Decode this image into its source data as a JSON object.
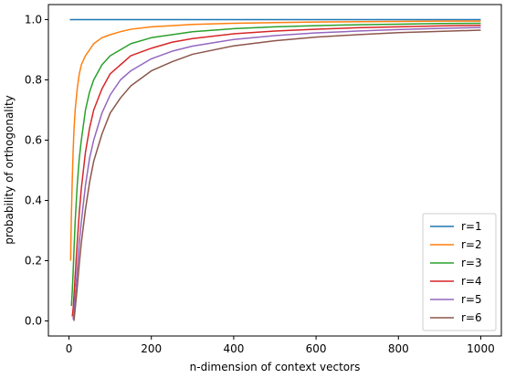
{
  "chart_data": {
    "type": "line",
    "title": "",
    "xlabel": "n-dimension of context vectors",
    "ylabel": "probability of orthogonality",
    "xlim": [
      -50,
      1050
    ],
    "ylim": [
      -0.05,
      1.05
    ],
    "xticks": [
      0,
      200,
      400,
      600,
      800,
      1000
    ],
    "yticks": [
      0.0,
      0.2,
      0.4,
      0.6,
      0.8,
      1.0
    ],
    "xtick_labels": [
      "0",
      "200",
      "400",
      "600",
      "800",
      "1000"
    ],
    "ytick_labels": [
      "0.0",
      "0.2",
      "0.4",
      "0.6",
      "0.8",
      "1.0"
    ],
    "grid": false,
    "legend_position": "lower-right",
    "x": [
      2,
      3,
      4,
      5,
      6,
      8,
      10,
      12,
      15,
      20,
      25,
      30,
      40,
      50,
      60,
      80,
      100,
      125,
      150,
      200,
      250,
      300,
      400,
      500,
      600,
      700,
      800,
      900,
      1000
    ],
    "series": [
      {
        "name": "r=1",
        "color": "#1f77b4",
        "values": [
          1.0,
          1.0,
          1.0,
          1.0,
          1.0,
          1.0,
          1.0,
          1.0,
          1.0,
          1.0,
          1.0,
          1.0,
          1.0,
          1.0,
          1.0,
          1.0,
          1.0,
          1.0,
          1.0,
          1.0,
          1.0,
          1.0,
          1.0,
          1.0,
          1.0,
          1.0,
          1.0,
          1.0,
          1.0
        ]
      },
      {
        "name": "r=2",
        "color": "#ff7f0e",
        "values": [
          null,
          null,
          0.2,
          0.29,
          0.36,
          0.47,
          0.56,
          0.63,
          0.7,
          0.77,
          0.82,
          0.85,
          0.88,
          0.9,
          0.92,
          0.94,
          0.95,
          0.96,
          0.968,
          0.976,
          0.98,
          0.984,
          0.988,
          0.99,
          0.992,
          0.993,
          0.994,
          0.995,
          0.995
        ]
      },
      {
        "name": "r=3",
        "color": "#2ca02c",
        "values": [
          null,
          null,
          null,
          null,
          0.05,
          0.1,
          0.16,
          0.23,
          0.33,
          0.45,
          0.54,
          0.6,
          0.7,
          0.76,
          0.8,
          0.85,
          0.88,
          0.9,
          0.92,
          0.94,
          0.95,
          0.96,
          0.97,
          0.976,
          0.98,
          0.983,
          0.985,
          0.987,
          0.988
        ]
      },
      {
        "name": "r=4",
        "color": "#d62728",
        "values": [
          null,
          null,
          null,
          null,
          null,
          0.015,
          0.04,
          0.08,
          0.15,
          0.26,
          0.36,
          0.44,
          0.56,
          0.64,
          0.7,
          0.77,
          0.82,
          0.85,
          0.88,
          0.905,
          0.925,
          0.937,
          0.953,
          0.962,
          0.968,
          0.973,
          0.976,
          0.979,
          0.981
        ]
      },
      {
        "name": "r=5",
        "color": "#9467bd",
        "values": [
          null,
          null,
          null,
          null,
          null,
          null,
          0.005,
          0.03,
          0.08,
          0.17,
          0.26,
          0.33,
          0.45,
          0.54,
          0.6,
          0.69,
          0.75,
          0.8,
          0.83,
          0.87,
          0.895,
          0.912,
          0.934,
          0.947,
          0.956,
          0.962,
          0.967,
          0.971,
          0.974
        ]
      },
      {
        "name": "r=6",
        "color": "#8c564b",
        "values": [
          null,
          null,
          null,
          null,
          null,
          null,
          null,
          0.0,
          0.04,
          0.11,
          0.19,
          0.26,
          0.37,
          0.46,
          0.53,
          0.62,
          0.69,
          0.74,
          0.78,
          0.83,
          0.86,
          0.885,
          0.913,
          0.93,
          0.942,
          0.95,
          0.957,
          0.961,
          0.965
        ]
      }
    ]
  }
}
